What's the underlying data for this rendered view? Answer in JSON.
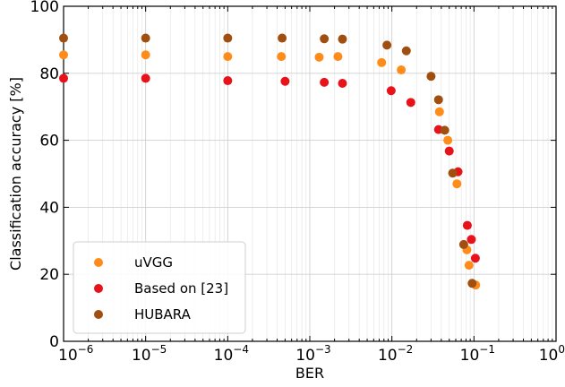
{
  "chart_data": {
    "type": "scatter",
    "xlabel": "BER",
    "ylabel": "Classification accuracy [%]",
    "xscale": "log",
    "xlim": [
      1e-06,
      1
    ],
    "ylim": [
      0,
      100
    ],
    "grid": true,
    "legend_position": "bottom-left",
    "x_ticks": [
      {
        "value": 1e-06,
        "base": "10",
        "exp": "−6"
      },
      {
        "value": 1e-05,
        "base": "10",
        "exp": "−5"
      },
      {
        "value": 0.0001,
        "base": "10",
        "exp": "−4"
      },
      {
        "value": 0.001,
        "base": "10",
        "exp": "−3"
      },
      {
        "value": 0.01,
        "base": "10",
        "exp": "−2"
      },
      {
        "value": 0.1,
        "base": "10",
        "exp": "−1"
      },
      {
        "value": 1,
        "base": "10",
        "exp": "0"
      }
    ],
    "y_ticks": [
      {
        "value": 0,
        "label": "0"
      },
      {
        "value": 20,
        "label": "20"
      },
      {
        "value": 40,
        "label": "40"
      },
      {
        "value": 60,
        "label": "60"
      },
      {
        "value": 80,
        "label": "80"
      },
      {
        "value": 100,
        "label": "100"
      }
    ],
    "series": [
      {
        "name": "uVGG",
        "color": "#ff8c1a",
        "points": [
          {
            "x": 1e-06,
            "y": 85.5
          },
          {
            "x": 1e-05,
            "y": 85.5
          },
          {
            "x": 0.0001,
            "y": 85.0
          },
          {
            "x": 0.00045,
            "y": 85.0
          },
          {
            "x": 0.0013,
            "y": 84.8
          },
          {
            "x": 0.0022,
            "y": 85.0
          },
          {
            "x": 0.0075,
            "y": 83.2
          },
          {
            "x": 0.013,
            "y": 81.0
          },
          {
            "x": 0.038,
            "y": 68.5
          },
          {
            "x": 0.048,
            "y": 60.0
          },
          {
            "x": 0.062,
            "y": 47.0
          },
          {
            "x": 0.082,
            "y": 27.3
          },
          {
            "x": 0.087,
            "y": 22.7
          },
          {
            "x": 0.105,
            "y": 16.8
          }
        ]
      },
      {
        "name": "Based on [23]",
        "color": "#e8121a",
        "points": [
          {
            "x": 1e-06,
            "y": 78.5
          },
          {
            "x": 1e-05,
            "y": 78.5
          },
          {
            "x": 0.0001,
            "y": 77.8
          },
          {
            "x": 0.0005,
            "y": 77.6
          },
          {
            "x": 0.0015,
            "y": 77.3
          },
          {
            "x": 0.0025,
            "y": 77.0
          },
          {
            "x": 0.0098,
            "y": 74.8
          },
          {
            "x": 0.017,
            "y": 71.3
          },
          {
            "x": 0.037,
            "y": 63.2
          },
          {
            "x": 0.05,
            "y": 56.8
          },
          {
            "x": 0.064,
            "y": 50.6
          },
          {
            "x": 0.083,
            "y": 34.6
          },
          {
            "x": 0.093,
            "y": 30.4
          },
          {
            "x": 0.104,
            "y": 24.8
          }
        ]
      },
      {
        "name": "HUBARA",
        "color": "#a04f10",
        "points": [
          {
            "x": 1e-06,
            "y": 90.5
          },
          {
            "x": 1e-05,
            "y": 90.5
          },
          {
            "x": 0.0001,
            "y": 90.5
          },
          {
            "x": 0.00046,
            "y": 90.5
          },
          {
            "x": 0.0015,
            "y": 90.3
          },
          {
            "x": 0.0025,
            "y": 90.2
          },
          {
            "x": 0.0087,
            "y": 88.4
          },
          {
            "x": 0.015,
            "y": 86.7
          },
          {
            "x": 0.03,
            "y": 79.1
          },
          {
            "x": 0.037,
            "y": 72.1
          },
          {
            "x": 0.044,
            "y": 63.0
          },
          {
            "x": 0.055,
            "y": 50.2
          },
          {
            "x": 0.075,
            "y": 28.9
          },
          {
            "x": 0.095,
            "y": 17.3
          }
        ]
      }
    ]
  }
}
